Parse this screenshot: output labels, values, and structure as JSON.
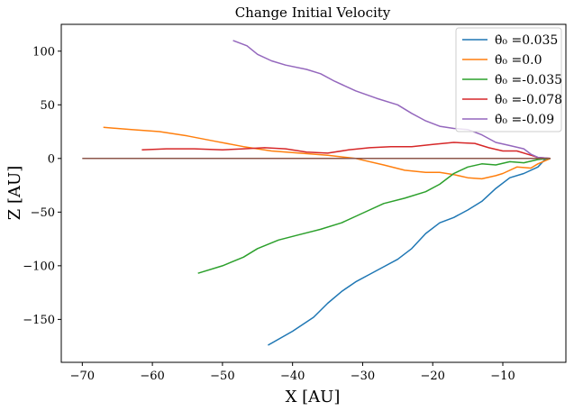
{
  "chart_data": {
    "type": "line",
    "title": "Change Initial Velocity",
    "xlabel": "X [AU]",
    "ylabel": "Z [AU]",
    "xlim": [
      -73,
      -1
    ],
    "ylim": [
      -190,
      125
    ],
    "xticks": [
      -70,
      -60,
      -50,
      -40,
      -30,
      -20,
      -10
    ],
    "yticks": [
      -150,
      -100,
      -50,
      0,
      50,
      100
    ],
    "xtick_labels": [
      "−70",
      "−60",
      "−50",
      "−40",
      "−30",
      "−20",
      "−10"
    ],
    "ytick_labels": [
      "−150",
      "−100",
      "−50",
      "0",
      "50",
      "100"
    ],
    "grid": false,
    "legend_position": "top-right",
    "series": [
      {
        "name": "θ̇₀ =0.035",
        "color": "#1f77b4",
        "points": [
          [
            -43.5,
            -174
          ],
          [
            -40,
            -161
          ],
          [
            -37,
            -148
          ],
          [
            -35,
            -135
          ],
          [
            -33,
            -124
          ],
          [
            -31,
            -115
          ],
          [
            -29,
            -108
          ],
          [
            -27,
            -101
          ],
          [
            -25,
            -94
          ],
          [
            -23,
            -84
          ],
          [
            -21,
            -70
          ],
          [
            -19,
            -60
          ],
          [
            -17,
            -55
          ],
          [
            -15,
            -48
          ],
          [
            -13,
            -40
          ],
          [
            -11,
            -28
          ],
          [
            -9,
            -18
          ],
          [
            -7,
            -14
          ],
          [
            -5,
            -8
          ],
          [
            -4,
            -1
          ],
          [
            -3.2,
            0
          ]
        ]
      },
      {
        "name": "θ̇₀ =0.0",
        "color": "#ff7f0e",
        "points": [
          [
            -67,
            29
          ],
          [
            -63,
            27
          ],
          [
            -59,
            25
          ],
          [
            -55,
            21
          ],
          [
            -51,
            16
          ],
          [
            -47,
            11
          ],
          [
            -43,
            7
          ],
          [
            -39,
            5
          ],
          [
            -35,
            3
          ],
          [
            -31,
            0
          ],
          [
            -27,
            -6
          ],
          [
            -24,
            -11
          ],
          [
            -21,
            -13
          ],
          [
            -19,
            -13
          ],
          [
            -17,
            -15
          ],
          [
            -15,
            -18
          ],
          [
            -13,
            -19
          ],
          [
            -11,
            -16
          ],
          [
            -10,
            -14
          ],
          [
            -8,
            -8
          ],
          [
            -6,
            -9
          ],
          [
            -5,
            -5
          ],
          [
            -3.2,
            0
          ]
        ]
      },
      {
        "name": "θ̇₀ =-0.035",
        "color": "#2ca02c",
        "points": [
          [
            -53.5,
            -107
          ],
          [
            -50,
            -100
          ],
          [
            -47,
            -92
          ],
          [
            -45,
            -84
          ],
          [
            -42,
            -76
          ],
          [
            -39,
            -71
          ],
          [
            -36,
            -66
          ],
          [
            -33,
            -60
          ],
          [
            -30,
            -51
          ],
          [
            -27,
            -42
          ],
          [
            -24,
            -37
          ],
          [
            -21,
            -31
          ],
          [
            -19,
            -24
          ],
          [
            -17,
            -14
          ],
          [
            -15,
            -8
          ],
          [
            -13,
            -5
          ],
          [
            -11,
            -6
          ],
          [
            -9,
            -3
          ],
          [
            -7,
            -4
          ],
          [
            -5,
            -1
          ],
          [
            -3.2,
            0
          ]
        ]
      },
      {
        "name": "θ̇₀ =-0.078",
        "color": "#d62728",
        "points": [
          [
            -61.5,
            8
          ],
          [
            -58,
            9
          ],
          [
            -54,
            9
          ],
          [
            -50,
            8
          ],
          [
            -47,
            9
          ],
          [
            -44,
            10
          ],
          [
            -41,
            9
          ],
          [
            -38,
            6
          ],
          [
            -35,
            5
          ],
          [
            -32,
            8
          ],
          [
            -29,
            10
          ],
          [
            -26,
            11
          ],
          [
            -23,
            11
          ],
          [
            -20,
            13
          ],
          [
            -17,
            15
          ],
          [
            -14,
            14
          ],
          [
            -12,
            10
          ],
          [
            -10,
            7
          ],
          [
            -8,
            7
          ],
          [
            -6,
            3
          ],
          [
            -5,
            1
          ],
          [
            -3.2,
            0
          ]
        ]
      },
      {
        "name": "θ̇₀ =-0.09",
        "color": "#9467bd",
        "points": [
          [
            -48.5,
            110
          ],
          [
            -46.5,
            105
          ],
          [
            -45,
            97
          ],
          [
            -43,
            91
          ],
          [
            -41,
            87
          ],
          [
            -38,
            83
          ],
          [
            -36,
            79
          ],
          [
            -34,
            72
          ],
          [
            -31,
            63
          ],
          [
            -28,
            56
          ],
          [
            -25,
            50
          ],
          [
            -23,
            42
          ],
          [
            -21,
            35
          ],
          [
            -19,
            30
          ],
          [
            -17,
            28
          ],
          [
            -15,
            27
          ],
          [
            -13,
            22
          ],
          [
            -11,
            15
          ],
          [
            -9,
            12
          ],
          [
            -7,
            9
          ],
          [
            -6,
            4
          ],
          [
            -5,
            1
          ],
          [
            -3.2,
            0
          ]
        ]
      },
      {
        "name": "",
        "color": "#8c564b",
        "points": [
          [
            -70,
            0
          ],
          [
            -3.2,
            0
          ]
        ]
      }
    ]
  }
}
